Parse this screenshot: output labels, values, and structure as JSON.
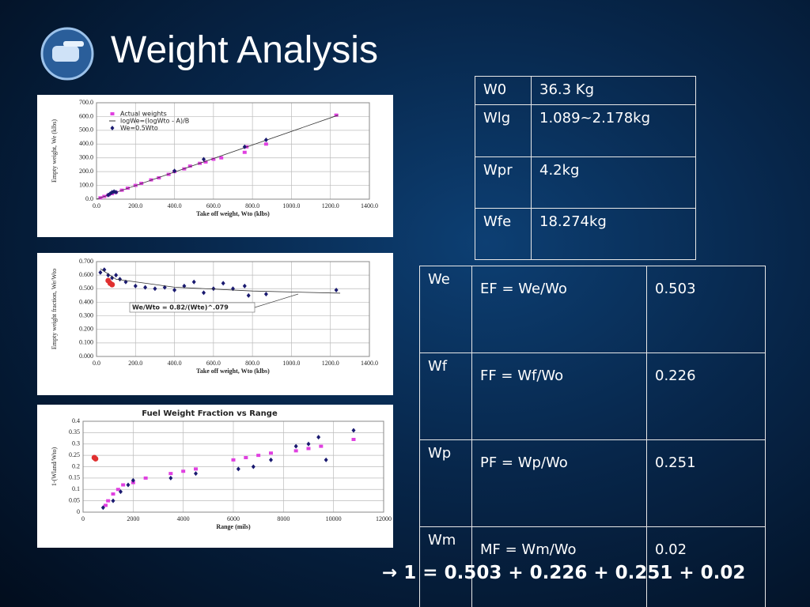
{
  "title": "Weight Analysis",
  "chart_data": [
    {
      "type": "scatter",
      "x_label": "Take off weight, Wto (klbs)",
      "y_label": "Empty weight, We (klbs)",
      "xlim": [
        0,
        1400
      ],
      "xticks": [
        {
          "value": 0,
          "label": "0.0"
        },
        {
          "value": 200,
          "label": "200.0"
        },
        {
          "value": 400,
          "label": "400.0"
        },
        {
          "value": 600,
          "label": "600.0"
        },
        {
          "value": 800,
          "label": "800.0"
        },
        {
          "value": 1000,
          "label": "1000.0"
        },
        {
          "value": 1200,
          "label": "1200.0"
        },
        {
          "value": 1400,
          "label": "1400.0"
        }
      ],
      "ylim": [
        0,
        700
      ],
      "yticks": [
        {
          "value": 0,
          "label": "0.0"
        },
        {
          "value": 100,
          "label": "100.0"
        },
        {
          "value": 200,
          "label": "200.0"
        },
        {
          "value": 300,
          "label": "300.0"
        },
        {
          "value": 400,
          "label": "400.0"
        },
        {
          "value": 500,
          "label": "500.0"
        },
        {
          "value": 600,
          "label": "600.0"
        },
        {
          "value": 700,
          "label": "700.0"
        }
      ],
      "grid": true,
      "legend": "upper left",
      "series": [
        {
          "name": "Actual weights",
          "color": "#e040e0",
          "marker": "square",
          "x": [
            20,
            40,
            60,
            80,
            100,
            130,
            160,
            200,
            230,
            280,
            320,
            370,
            400,
            450,
            480,
            530,
            560,
            600,
            640,
            760,
            770,
            870,
            1230
          ],
          "values": [
            10,
            20,
            30,
            40,
            50,
            65,
            80,
            100,
            115,
            140,
            155,
            180,
            200,
            220,
            240,
            260,
            270,
            290,
            300,
            340,
            380,
            400,
            610
          ]
        },
        {
          "name": "logWe=(logWto - A)/B",
          "color": "#333333",
          "marker": "line",
          "x": [
            0,
            1240
          ],
          "values": [
            0,
            610
          ]
        },
        {
          "name": "We=0.5Wto",
          "color": "#1a1a70",
          "marker": "diamond",
          "x": [
            60,
            70,
            80,
            90,
            100,
            400,
            550,
            760,
            870
          ],
          "values": [
            30,
            40,
            50,
            55,
            50,
            205,
            290,
            380,
            430
          ]
        }
      ]
    },
    {
      "type": "scatter",
      "x_label": "Take off weight, Wto (klbs)",
      "y_label": "Empty weight fraction, We/Wto",
      "annotation": "We/Wto = 0.82/(Wte)^.079",
      "xlim": [
        0,
        1400
      ],
      "xticks": [
        {
          "value": 0,
          "label": "0.0"
        },
        {
          "value": 200,
          "label": "200.0"
        },
        {
          "value": 400,
          "label": "400.0"
        },
        {
          "value": 600,
          "label": "600.0"
        },
        {
          "value": 800,
          "label": "800.0"
        },
        {
          "value": 1000,
          "label": "1000.0"
        },
        {
          "value": 1200,
          "label": "1200.0"
        },
        {
          "value": 1400,
          "label": "1400.0"
        }
      ],
      "ylim": [
        0,
        0.7
      ],
      "yticks": [
        {
          "value": 0,
          "label": "0.000"
        },
        {
          "value": 0.1,
          "label": "0.100"
        },
        {
          "value": 0.2,
          "label": "0.200"
        },
        {
          "value": 0.3,
          "label": "0.300"
        },
        {
          "value": 0.4,
          "label": "0.400"
        },
        {
          "value": 0.5,
          "label": "0.500"
        },
        {
          "value": 0.6,
          "label": "0.600"
        },
        {
          "value": 0.7,
          "label": "0.700"
        }
      ],
      "grid": true,
      "series": [
        {
          "color": "#1a1a70",
          "marker": "diamond",
          "x": [
            20,
            40,
            60,
            80,
            100,
            120,
            150,
            200,
            250,
            300,
            350,
            400,
            450,
            500,
            550,
            600,
            650,
            700,
            760,
            780,
            870,
            1230
          ],
          "values": [
            0.62,
            0.64,
            0.6,
            0.58,
            0.6,
            0.57,
            0.55,
            0.52,
            0.51,
            0.5,
            0.51,
            0.49,
            0.52,
            0.55,
            0.47,
            0.5,
            0.54,
            0.5,
            0.52,
            0.45,
            0.46,
            0.49
          ]
        },
        {
          "color": "#e03030",
          "marker": "circle",
          "x": [
            60,
            70,
            80
          ],
          "values": [
            0.56,
            0.54,
            0.53
          ]
        },
        {
          "color": "#333333",
          "marker": "line",
          "x": [
            20,
            100,
            400,
            800,
            1250
          ],
          "values": [
            0.647,
            0.57,
            0.511,
            0.483,
            0.467
          ]
        }
      ]
    },
    {
      "type": "scatter",
      "title": "Fuel Weight Fraction vs Range",
      "x_label": "Range (mils)",
      "y_label": "1-(Wland/Wto)",
      "xlim": [
        0,
        12000
      ],
      "xticks": [
        0,
        2000,
        4000,
        6000,
        8000,
        10000,
        12000
      ],
      "ylim": [
        0,
        0.4
      ],
      "yticks": [
        0,
        0.05,
        0.1,
        0.15,
        0.2,
        0.25,
        0.3,
        0.35,
        0.4
      ],
      "grid": true,
      "series": [
        {
          "color": "#e03030",
          "marker": "circle",
          "x": [
            450,
            500
          ],
          "values": [
            0.24,
            0.235
          ]
        },
        {
          "color": "#e040e0",
          "marker": "square",
          "x": [
            900,
            1000,
            1200,
            1400,
            1600,
            2000,
            2500,
            3500,
            4000,
            4500,
            6000,
            6500,
            7000,
            7500,
            8500,
            9000,
            9500,
            10800
          ],
          "values": [
            0.03,
            0.05,
            0.08,
            0.1,
            0.12,
            0.13,
            0.15,
            0.17,
            0.18,
            0.19,
            0.23,
            0.24,
            0.25,
            0.26,
            0.27,
            0.28,
            0.29,
            0.32
          ]
        },
        {
          "color": "#1a1a70",
          "marker": "diamond",
          "x": [
            800,
            1200,
            1500,
            1800,
            2000,
            3500,
            4500,
            6200,
            6800,
            7500,
            8500,
            9000,
            9400,
            9700,
            10800
          ],
          "values": [
            0.02,
            0.05,
            0.09,
            0.12,
            0.14,
            0.15,
            0.17,
            0.19,
            0.2,
            0.23,
            0.29,
            0.3,
            0.33,
            0.23,
            0.36
          ]
        }
      ]
    }
  ],
  "table1": {
    "rows": [
      [
        "W0",
        "36.3 Kg"
      ],
      [
        "Wlg",
        "1.089~2.178kg"
      ],
      [
        "Wpr",
        "4.2kg"
      ],
      [
        "Wfe",
        "18.274kg"
      ]
    ]
  },
  "table2": {
    "rows": [
      [
        "We",
        "EF = We/Wo",
        "0.503"
      ],
      [
        "Wf",
        "FF = Wf/Wo",
        "0.226"
      ],
      [
        "Wp",
        "PF = Wp/Wo",
        "0.251"
      ],
      [
        "Wm",
        "MF = Wm/Wo",
        "0.02"
      ]
    ]
  },
  "summary": "→ 1 = 0.503 + 0.226 + 0.251 + 0.02"
}
